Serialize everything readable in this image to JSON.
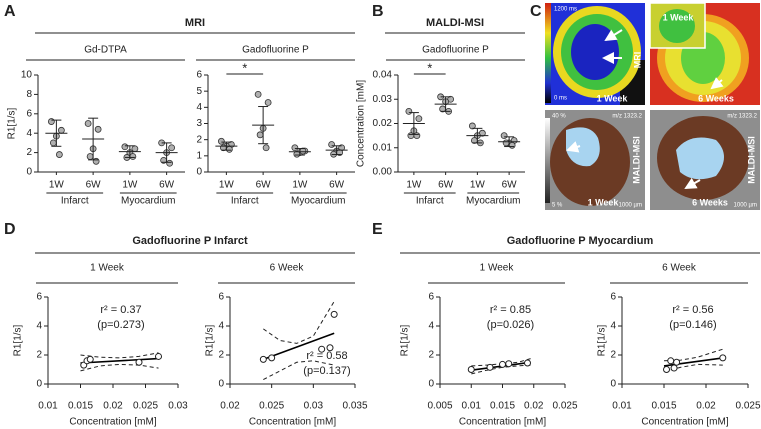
{
  "panels": {
    "A": {
      "label": "A",
      "title": "MRI"
    },
    "B": {
      "label": "B",
      "title": "MALDI-MSI"
    },
    "C": {
      "label": "C"
    },
    "D": {
      "label": "D",
      "title": "Gadofluorine P Infarct"
    },
    "E": {
      "label": "E",
      "title": "Gadofluorine P Myocardium"
    }
  },
  "images": [
    {
      "scale_top": "1200 ms",
      "scale_bottom": "0 ms",
      "method": "MRI",
      "time": "1 Week"
    },
    {
      "inset": "1 Week",
      "time": "6 Weeks"
    },
    {
      "scale_top": "40 %",
      "scale_bottom": "5 %",
      "mz": "m/z 1323.2",
      "method": "MALDI-MSI",
      "time": "1 Week",
      "scalebar": "1000 µm"
    },
    {
      "mz": "m/z 1323.2",
      "method": "MALDI-MSI",
      "time": "6 Weeks",
      "scalebar": "1000 µm"
    }
  ],
  "chart_data": [
    {
      "type": "dot",
      "title": "Gd-DTPA",
      "ylabel": "R1[1/s]",
      "categories": [
        "1W",
        "6W",
        "1W",
        "6W"
      ],
      "groups": [
        "Infarct",
        "Myocardium"
      ],
      "values": [
        [
          5.2,
          4.3,
          3.7,
          3.0,
          1.8
        ],
        [
          5.0,
          4.4,
          2.4,
          1.6,
          1.1
        ],
        [
          2.6,
          2.4,
          2.0,
          1.5,
          1.6
        ],
        [
          3.0,
          2.5,
          2.0,
          1.2,
          0.9
        ]
      ],
      "means": [
        4.0,
        3.4,
        2.1,
        2.0
      ],
      "sds": [
        1.35,
        2.15,
        0.6,
        1.0
      ],
      "ylim": [
        0,
        10
      ],
      "yticks": [
        0,
        2,
        4,
        6,
        8,
        10
      ]
    },
    {
      "type": "dot",
      "title": "Gadofluorine P",
      "ylabel": "",
      "categories": [
        "1W",
        "6W",
        "1W",
        "6W"
      ],
      "groups": [
        "Infarct",
        "Myocardium"
      ],
      "values": [
        [
          1.9,
          1.7,
          1.6,
          1.5,
          1.4
        ],
        [
          4.8,
          4.3,
          2.7,
          2.3,
          1.5
        ],
        [
          1.5,
          1.3,
          1.2,
          1.1,
          1.3
        ],
        [
          1.7,
          1.5,
          1.3,
          1.1,
          1.2
        ]
      ],
      "means": [
        1.6,
        2.9,
        1.25,
        1.35
      ],
      "sds": [
        0.25,
        1.15,
        0.2,
        0.27
      ],
      "ylim": [
        0,
        6
      ],
      "yticks": [
        0,
        1,
        2,
        3,
        4,
        5,
        6
      ],
      "significance": "*"
    },
    {
      "type": "dot",
      "title": "Gadofluorine P",
      "ylabel": "Concentration [mM]",
      "categories": [
        "1W",
        "6W",
        "1W",
        "6W"
      ],
      "groups": [
        "Infarct",
        "Myocardium"
      ],
      "values": [
        [
          0.025,
          0.022,
          0.017,
          0.015,
          0.015
        ],
        [
          0.031,
          0.03,
          0.029,
          0.026,
          0.025
        ],
        [
          0.019,
          0.016,
          0.015,
          0.013,
          0.012
        ],
        [
          0.015,
          0.013,
          0.012,
          0.012,
          0.011
        ]
      ],
      "means": [
        0.02,
        0.028,
        0.015,
        0.0125
      ],
      "sds": [
        0.0045,
        0.003,
        0.003,
        0.002
      ],
      "ylim": [
        0,
        0.04
      ],
      "yticks": [
        {
          "value": 0,
          "label": "0.00"
        },
        0.01,
        0.02,
        0.03,
        0.04
      ],
      "significance": "*"
    },
    {
      "type": "scatter",
      "title": "1 Week",
      "xlabel": "Concentration [mM]",
      "ylabel": "R1[1/s]",
      "x": [
        0.0155,
        0.016,
        0.0165,
        0.024,
        0.027
      ],
      "y": [
        1.3,
        1.6,
        1.7,
        1.5,
        1.9
      ],
      "fit": {
        "x": [
          0.015,
          0.027
        ],
        "y": [
          1.45,
          1.75
        ]
      },
      "ci": {
        "x": [
          0.015,
          0.018,
          0.021,
          0.024,
          0.027
        ],
        "upper": [
          2.0,
          1.85,
          1.8,
          1.9,
          2.15
        ],
        "lower": [
          0.9,
          1.25,
          1.35,
          1.3,
          1.1
        ]
      },
      "annotations": [
        "r² = 0.37",
        "(p=0.273)"
      ],
      "xlim": [
        0.01,
        0.03
      ],
      "xticks": [
        0.01,
        0.015,
        0.02,
        0.025,
        0.03
      ],
      "ylim": [
        0,
        6
      ],
      "yticks": [
        0,
        2,
        4,
        6
      ]
    },
    {
      "type": "scatter",
      "title": "6 Week",
      "xlabel": "Concentration [mM]",
      "ylabel": "R1[1/s]",
      "x": [
        0.024,
        0.025,
        0.031,
        0.032,
        0.0325
      ],
      "y": [
        1.7,
        1.8,
        2.4,
        2.5,
        4.8
      ],
      "fit": {
        "x": [
          0.024,
          0.0325
        ],
        "y": [
          1.7,
          3.5
        ]
      },
      "ci": {
        "x": [
          0.024,
          0.026,
          0.028,
          0.03,
          0.0325
        ],
        "upper": [
          3.8,
          3.0,
          2.8,
          3.3,
          5.7
        ],
        "lower": [
          0.3,
          0.9,
          1.5,
          1.6,
          1.3
        ]
      },
      "annotations": [
        "r² = 0.58",
        "(p=0.137)"
      ],
      "xlim": [
        0.02,
        0.035
      ],
      "xticks": [
        0.02,
        0.025,
        0.03,
        0.035
      ],
      "ylim": [
        0,
        6
      ],
      "yticks": [
        0,
        2,
        4,
        6
      ]
    },
    {
      "type": "scatter",
      "title": "1 Week",
      "xlabel": "Concentration [mM]",
      "ylabel": "R1[1/s]",
      "x": [
        0.01,
        0.013,
        0.015,
        0.016,
        0.019
      ],
      "y": [
        1.0,
        1.15,
        1.35,
        1.4,
        1.45
      ],
      "fit": {
        "x": [
          0.01,
          0.0195
        ],
        "y": [
          0.95,
          1.5
        ]
      },
      "ci": {
        "x": [
          0.01,
          0.0125,
          0.015,
          0.0175,
          0.0195
        ],
        "upper": [
          1.25,
          1.3,
          1.4,
          1.5,
          1.75
        ],
        "lower": [
          0.7,
          0.95,
          1.15,
          1.25,
          1.3
        ]
      },
      "annotations": [
        "r² = 0.85",
        "(p=0.026)"
      ],
      "xlim": [
        0.005,
        0.025
      ],
      "xticks": [
        0.005,
        0.01,
        0.015,
        0.02,
        0.025
      ],
      "ylim": [
        0,
        6
      ],
      "yticks": [
        0,
        2,
        4,
        6
      ]
    },
    {
      "type": "scatter",
      "title": "6 Week",
      "xlabel": "Concentration [mM]",
      "ylabel": "R1[1/s]",
      "x": [
        0.0153,
        0.0158,
        0.0162,
        0.0165,
        0.022
      ],
      "y": [
        1.0,
        1.6,
        1.1,
        1.5,
        1.8
      ],
      "fit": {
        "x": [
          0.015,
          0.022
        ],
        "y": [
          1.25,
          1.8
        ]
      },
      "ci": {
        "x": [
          0.015,
          0.017,
          0.019,
          0.022
        ],
        "upper": [
          1.6,
          1.65,
          1.85,
          2.4
        ],
        "lower": [
          0.85,
          1.15,
          1.35,
          1.3
        ]
      },
      "annotations": [
        "r² = 0.56",
        "(p=0.146)"
      ],
      "xlim": [
        0.01,
        0.025
      ],
      "xticks": [
        0.01,
        0.015,
        0.02,
        0.025
      ],
      "ylim": [
        0,
        6
      ],
      "yticks": [
        0,
        2,
        4,
        6
      ]
    }
  ]
}
